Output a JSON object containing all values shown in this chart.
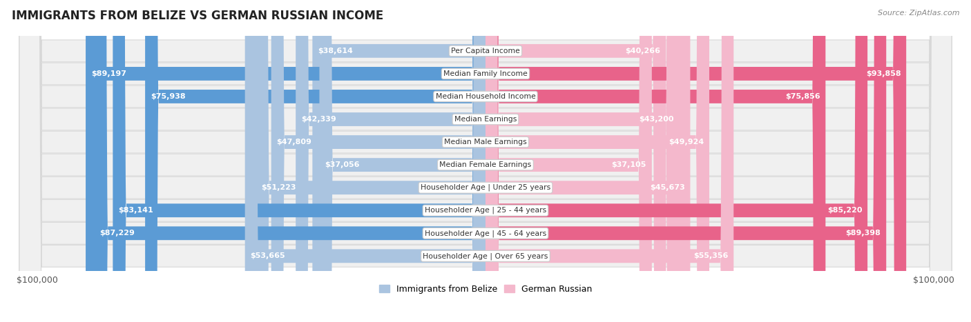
{
  "title": "IMMIGRANTS FROM BELIZE VS GERMAN RUSSIAN INCOME",
  "source": "Source: ZipAtlas.com",
  "categories": [
    "Per Capita Income",
    "Median Family Income",
    "Median Household Income",
    "Median Earnings",
    "Median Male Earnings",
    "Median Female Earnings",
    "Householder Age | Under 25 years",
    "Householder Age | 25 - 44 years",
    "Householder Age | 45 - 64 years",
    "Householder Age | Over 65 years"
  ],
  "belize_values": [
    38614,
    89197,
    75938,
    42339,
    47809,
    37056,
    51223,
    83141,
    87229,
    53665
  ],
  "german_russian_values": [
    40266,
    93858,
    75856,
    43200,
    49924,
    37105,
    45673,
    85220,
    89398,
    55356
  ],
  "belize_labels": [
    "$38,614",
    "$89,197",
    "$75,938",
    "$42,339",
    "$47,809",
    "$37,056",
    "$51,223",
    "$83,141",
    "$87,229",
    "$53,665"
  ],
  "german_russian_labels": [
    "$40,266",
    "$93,858",
    "$75,856",
    "$43,200",
    "$49,924",
    "$37,105",
    "$45,673",
    "$85,220",
    "$89,398",
    "$55,356"
  ],
  "max_value": 100000,
  "belize_color_light": "#aac4e0",
  "belize_color_dark": "#5b9bd5",
  "german_russian_color_light": "#f4b8cc",
  "german_russian_color_dark": "#e8638a",
  "row_bg_color": "#f0f0f0",
  "row_border_color": "#d8d8d8",
  "xlabel_left": "$100,000",
  "xlabel_right": "$100,000",
  "legend_belize": "Immigrants from Belize",
  "legend_german_russian": "German Russian",
  "inside_label_threshold": 0.3
}
